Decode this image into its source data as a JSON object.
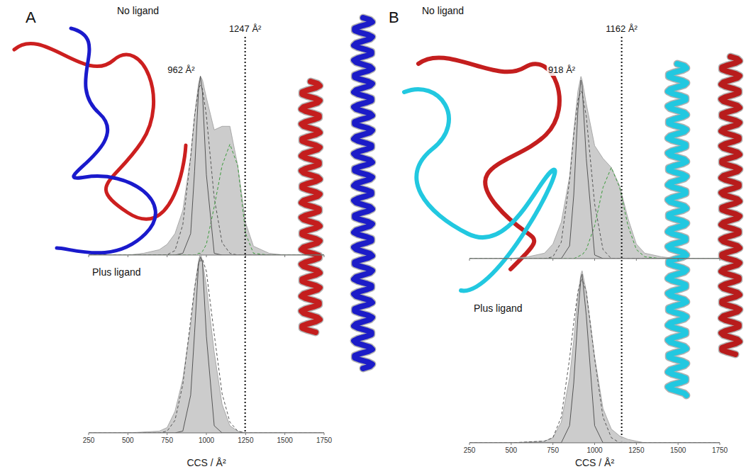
{
  "chart_data": [
    {
      "type": "area",
      "panel": "A",
      "title": "No ligand",
      "x": [
        250,
        500,
        600,
        700,
        750,
        800,
        850,
        900,
        925,
        950,
        962,
        975,
        1000,
        1050,
        1100,
        1150,
        1200,
        1250,
        1300,
        1400,
        1500,
        1750
      ],
      "series": [
        {
          "type": "area",
          "color": "#c8c8c8",
          "values": [
            0,
            0,
            0.01,
            0.03,
            0.06,
            0.12,
            0.25,
            0.55,
            0.78,
            0.96,
            1.0,
            0.98,
            0.88,
            0.7,
            0.72,
            0.72,
            0.5,
            0.18,
            0.05,
            0.01,
            0,
            0
          ]
        },
        {
          "type": "line",
          "line_style": "dashed",
          "color": "#555555",
          "values": [
            0,
            0,
            0,
            0,
            0.002,
            0.025,
            0.17,
            0.55,
            0.78,
            0.93,
            0.95,
            0.93,
            0.78,
            0.32,
            0.07,
            0.01,
            0,
            0,
            0,
            0,
            0,
            0
          ]
        },
        {
          "type": "line",
          "line_style": "dashed",
          "color": "#3a9a3a",
          "values": [
            0,
            0,
            0,
            0,
            0,
            0,
            0,
            0,
            0,
            0.01,
            0.01,
            0.02,
            0.06,
            0.27,
            0.5,
            0.62,
            0.5,
            0.12,
            0.01,
            0,
            0,
            0
          ]
        },
        {
          "type": "line",
          "line_style": "solid",
          "color": "#555555",
          "values": [
            0,
            0,
            0,
            0,
            0,
            0,
            0.01,
            0.12,
            0.47,
            0.92,
            1.0,
            0.91,
            0.45,
            0.01,
            0,
            0,
            0,
            0,
            0,
            0,
            0,
            0
          ]
        }
      ],
      "xlim": [
        250,
        1750
      ],
      "xticks": [
        250,
        500,
        750,
        1000,
        1250,
        1500,
        1750
      ],
      "ylim": [
        0,
        1.05
      ],
      "tick_labels": false,
      "annotations": [
        {
          "text": "962 Å²",
          "x": 962
        },
        {
          "text": "1247 Å²",
          "x": 1247,
          "line_style": "dotted"
        }
      ]
    },
    {
      "type": "area",
      "title": "Plus ligand",
      "xlabel": "CCS / Å²",
      "x": [
        250,
        500,
        700,
        750,
        800,
        850,
        900,
        925,
        950,
        962,
        975,
        1000,
        1050,
        1100,
        1150,
        1200,
        1250,
        1500,
        1750
      ],
      "series": [
        {
          "type": "area",
          "color": "#c8c8c8",
          "values": [
            0,
            0,
            0.01,
            0.03,
            0.12,
            0.3,
            0.6,
            0.8,
            0.96,
            1.0,
            0.96,
            0.82,
            0.45,
            0.16,
            0.04,
            0.01,
            0,
            0,
            0
          ]
        },
        {
          "type": "line",
          "line_style": "dashed",
          "color": "#555555",
          "values": [
            0,
            0,
            0,
            0.01,
            0.07,
            0.27,
            0.63,
            0.81,
            0.94,
            0.96,
            0.97,
            0.9,
            0.55,
            0.22,
            0.06,
            0.01,
            0,
            0,
            0
          ]
        },
        {
          "type": "line",
          "line_style": "solid",
          "color": "#555555",
          "values": [
            0,
            0,
            0,
            0,
            0,
            0.01,
            0.21,
            0.56,
            0.94,
            0.98,
            0.95,
            0.54,
            0.04,
            0,
            0,
            0,
            0,
            0,
            0
          ]
        }
      ],
      "xlim": [
        250,
        1750
      ],
      "xticks": [
        250,
        500,
        750,
        1000,
        1250,
        1500,
        1750
      ],
      "ylim": [
        0,
        1.05
      ],
      "tick_labels": "x"
    },
    {
      "type": "area",
      "panel": "B",
      "title": "No ligand",
      "x": [
        250,
        500,
        600,
        700,
        750,
        800,
        850,
        875,
        900,
        918,
        925,
        950,
        1000,
        1050,
        1100,
        1150,
        1200,
        1250,
        1300,
        1400,
        1500,
        1750
      ],
      "series": [
        {
          "type": "area",
          "color": "#c8c8c8",
          "values": [
            0,
            0,
            0.01,
            0.03,
            0.08,
            0.2,
            0.45,
            0.7,
            0.92,
            1.0,
            0.98,
            0.85,
            0.62,
            0.55,
            0.5,
            0.4,
            0.22,
            0.08,
            0.03,
            0.01,
            0,
            0
          ]
        },
        {
          "type": "line",
          "line_style": "dashed",
          "color": "#555555",
          "values": [
            0,
            0,
            0,
            0,
            0.01,
            0.09,
            0.43,
            0.68,
            0.87,
            0.92,
            0.91,
            0.78,
            0.3,
            0.05,
            0,
            0,
            0,
            0,
            0,
            0,
            0,
            0
          ]
        },
        {
          "type": "line",
          "line_style": "dashed",
          "color": "#3a9a3a",
          "values": [
            0,
            0,
            0,
            0,
            0,
            0,
            0,
            0,
            0.01,
            0.02,
            0.02,
            0.05,
            0.18,
            0.39,
            0.5,
            0.39,
            0.18,
            0.05,
            0.01,
            0,
            0,
            0
          ]
        },
        {
          "type": "line",
          "line_style": "solid",
          "color": "#555555",
          "values": [
            0,
            0,
            0,
            0,
            0,
            0,
            0.07,
            0.35,
            0.82,
            0.98,
            0.95,
            0.55,
            0.02,
            0,
            0,
            0,
            0,
            0,
            0,
            0,
            0,
            0
          ]
        }
      ],
      "xlim": [
        250,
        1750
      ],
      "xticks": [
        250,
        500,
        750,
        1000,
        1250,
        1500,
        1750
      ],
      "ylim": [
        0,
        1.05
      ],
      "tick_labels": false,
      "annotations": [
        {
          "text": "918 Å²",
          "x": 918
        },
        {
          "text": "1162 Å²",
          "x": 1162,
          "line_style": "dotted"
        }
      ]
    },
    {
      "type": "area",
      "title": "Plus ligand",
      "xlabel": "CCS / Å²",
      "x": [
        250,
        500,
        700,
        750,
        800,
        850,
        875,
        900,
        918,
        925,
        950,
        1000,
        1050,
        1100,
        1150,
        1200,
        1250,
        1300,
        1500,
        1750
      ],
      "series": [
        {
          "type": "area",
          "color": "#c8c8c8",
          "values": [
            0,
            0,
            0.01,
            0.03,
            0.12,
            0.38,
            0.6,
            0.86,
            0.98,
            1.0,
            0.88,
            0.5,
            0.2,
            0.08,
            0.04,
            0.02,
            0.01,
            0,
            0,
            0
          ]
        },
        {
          "type": "line",
          "line_style": "dashed",
          "color": "#555555",
          "values": [
            0,
            0,
            0.01,
            0.03,
            0.15,
            0.49,
            0.7,
            0.88,
            0.94,
            0.95,
            0.88,
            0.49,
            0.15,
            0.03,
            0,
            0,
            0,
            0,
            0,
            0
          ]
        },
        {
          "type": "line",
          "line_style": "solid",
          "color": "#555555",
          "values": [
            0,
            0,
            0,
            0,
            0,
            0.1,
            0.35,
            0.74,
            0.96,
            0.98,
            0.74,
            0.1,
            0,
            0,
            0,
            0,
            0,
            0,
            0,
            0
          ]
        }
      ],
      "xlim": [
        250,
        1750
      ],
      "xticks": [
        250,
        500,
        750,
        1000,
        1250,
        1500,
        1750
      ],
      "ylim": [
        0,
        1.05
      ],
      "tick_labels": "x"
    }
  ]
}
